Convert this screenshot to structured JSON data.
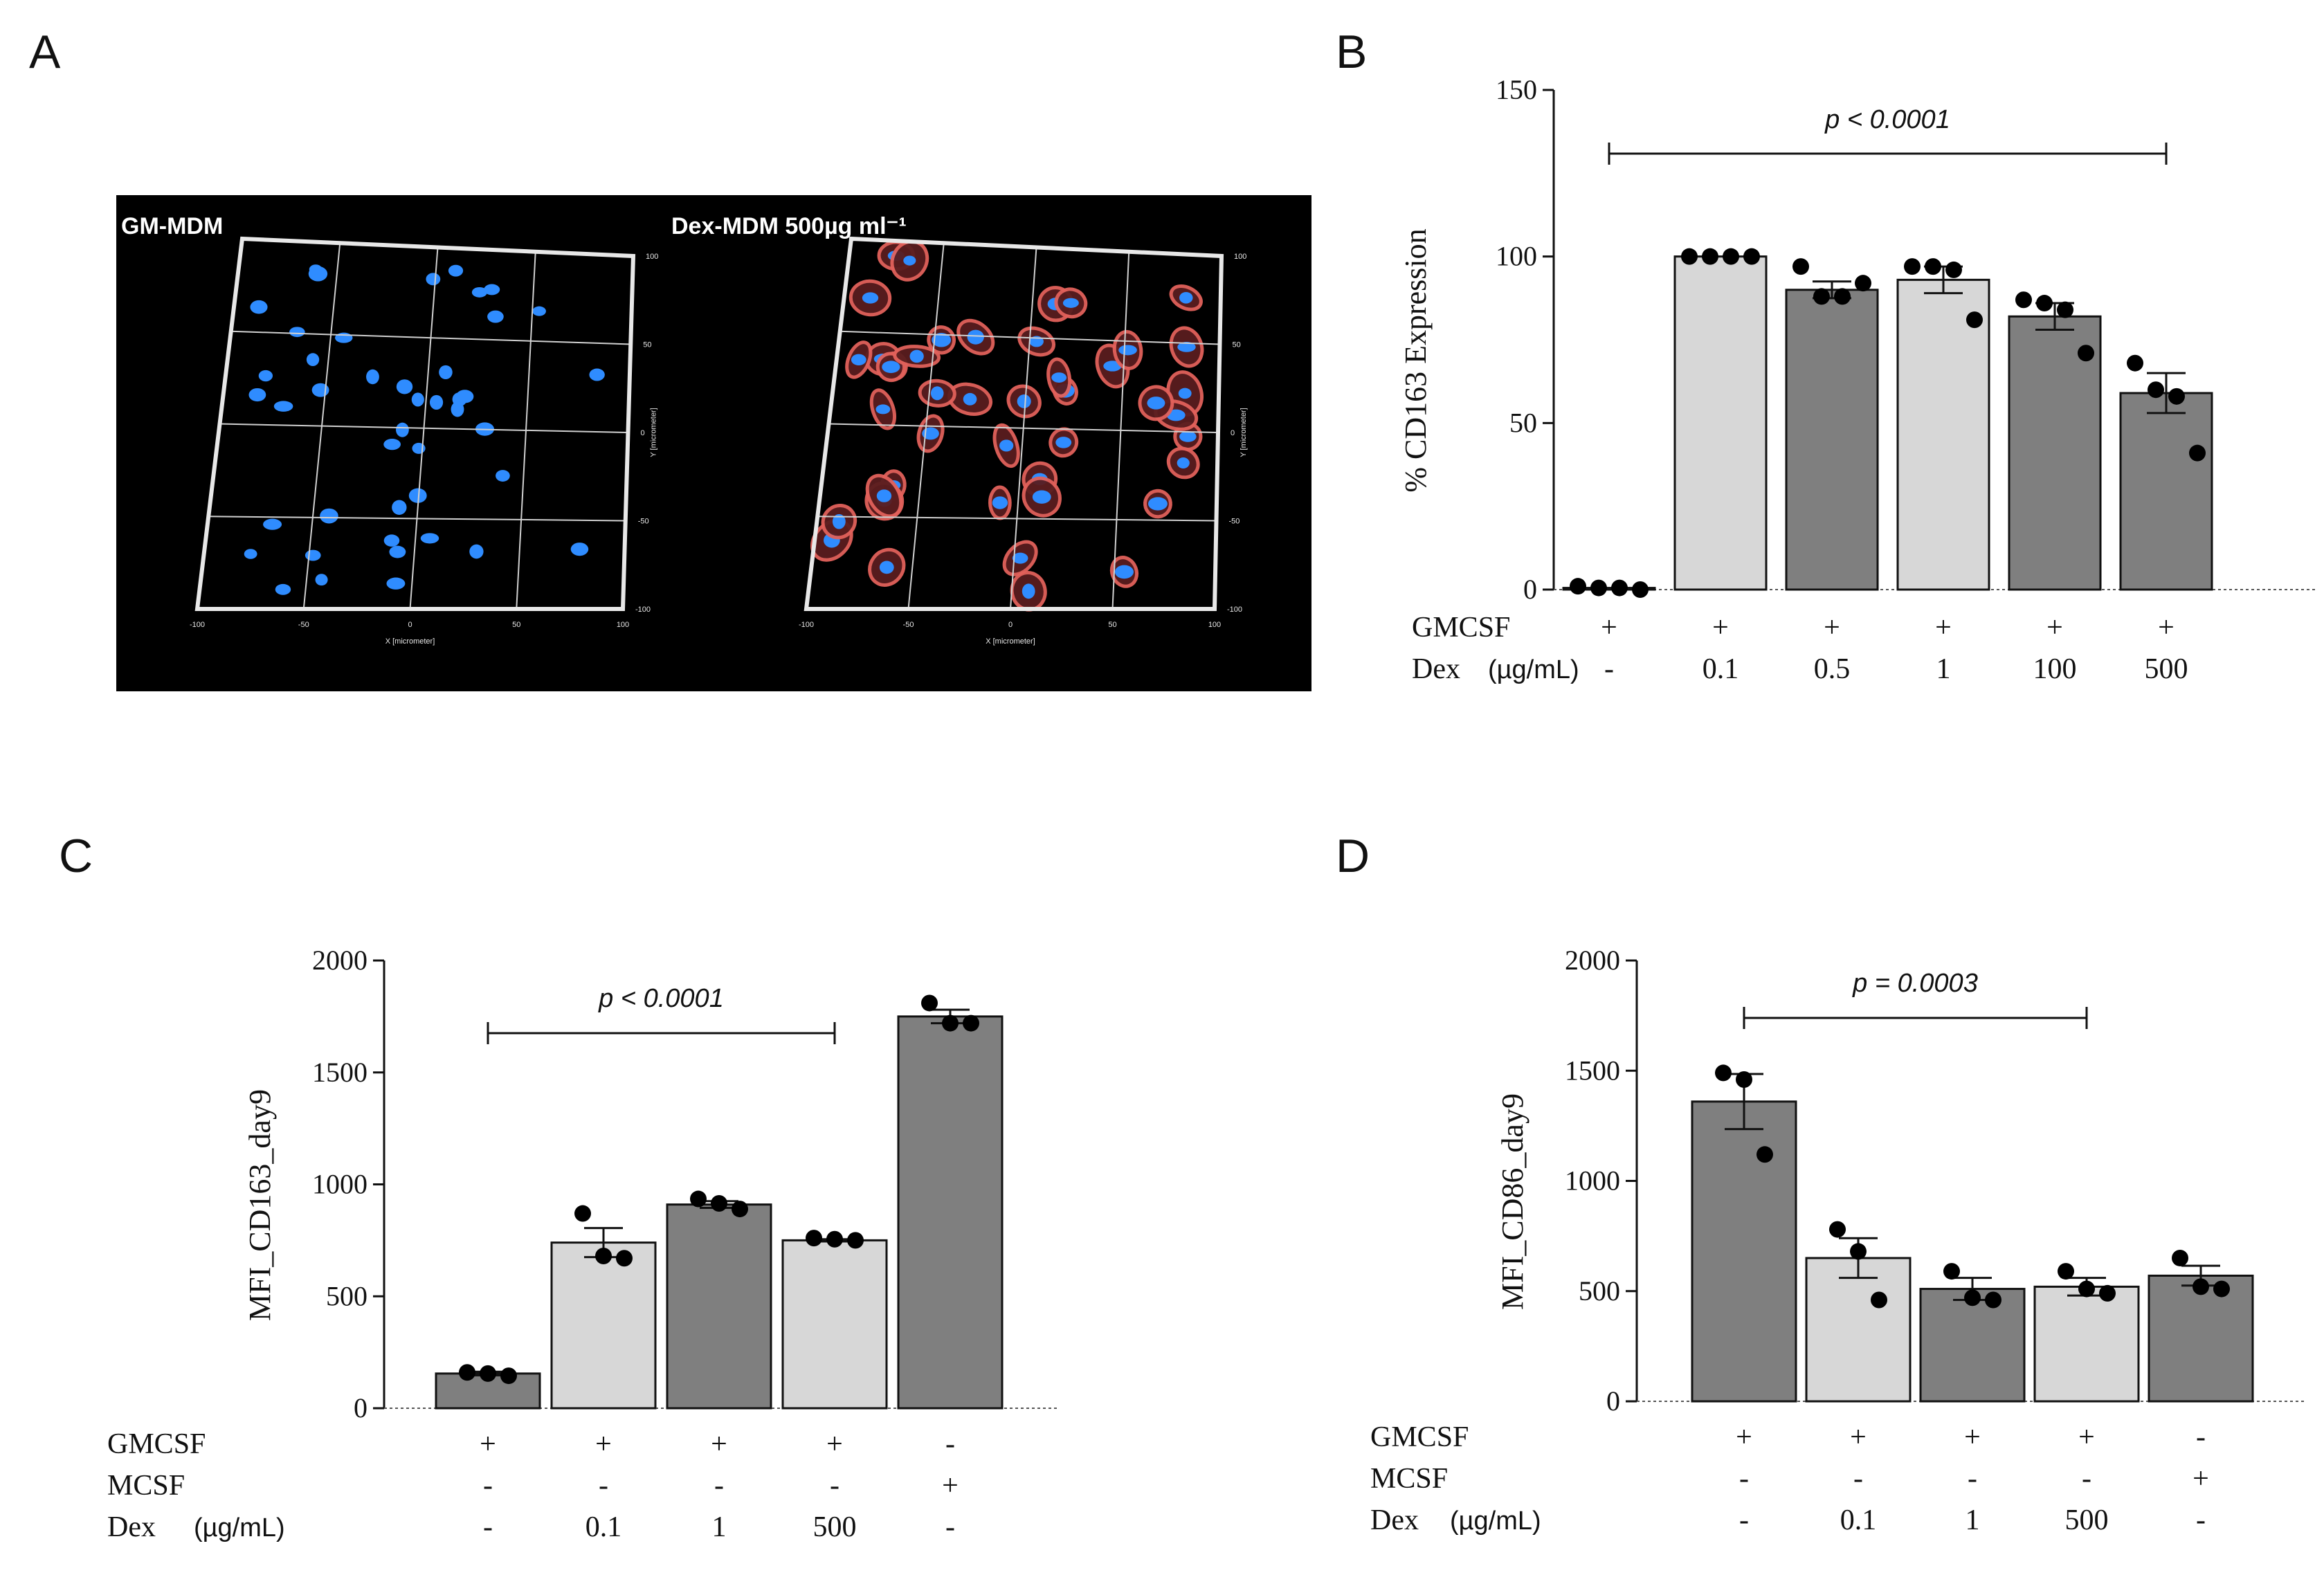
{
  "panels": {
    "a": "A",
    "b": "B",
    "c": "C",
    "d": "D"
  },
  "microscopy": {
    "left_title": "GM-MDM",
    "right_title": "Dex-MDM 500µg ml⁻¹",
    "x_ticks": [
      "-100",
      "-50",
      "0",
      "50",
      "100"
    ],
    "y_ticks": [
      "100",
      "50",
      "0",
      "-50",
      "-100"
    ],
    "x_axis_label": "X [micrometer]",
    "y_axis_label": "Y [micrometer]",
    "colors": {
      "background": "#000000",
      "nucleus": "#2f8cff",
      "membrane": "#e2615b"
    }
  },
  "colors": {
    "dark_bar": "#7f7f7f",
    "light_bar": "#d7d7d7",
    "dot": "#000000"
  },
  "chart_data": [
    {
      "id": "B",
      "type": "bar",
      "ylabel": "% CD163 Expression",
      "ylim": [
        0,
        150
      ],
      "yticks": [
        "0",
        "50",
        "100",
        "150"
      ],
      "annotation": {
        "text": "p < 0.0001",
        "from_bar": 0,
        "to_bar": 5
      },
      "condition_rows": [
        {
          "label": "GMCSF",
          "values": [
            "+",
            "+",
            "+",
            "+",
            "+",
            "+"
          ]
        },
        {
          "label": "Dex",
          "unit": "(µg/mL)",
          "values": [
            "-",
            "0.1",
            "0.5",
            "1",
            "100",
            "500"
          ]
        }
      ],
      "bars": [
        {
          "mean": 0.5,
          "sem": 0,
          "shade": "dark",
          "points": [
            1,
            0.5,
            0.5,
            0
          ]
        },
        {
          "mean": 100,
          "sem": 0,
          "shade": "light",
          "points": [
            100,
            100,
            100,
            100
          ]
        },
        {
          "mean": 90,
          "sem": 2.5,
          "shade": "dark",
          "points": [
            97,
            88,
            88,
            92
          ]
        },
        {
          "mean": 93,
          "sem": 4,
          "shade": "light",
          "points": [
            97,
            97,
            96,
            81
          ]
        },
        {
          "mean": 82,
          "sem": 4,
          "shade": "dark",
          "points": [
            87,
            86,
            84,
            71
          ]
        },
        {
          "mean": 59,
          "sem": 6,
          "shade": "dark",
          "points": [
            68,
            60,
            58,
            41
          ]
        }
      ]
    },
    {
      "id": "C",
      "type": "bar",
      "ylabel": "MFI_CD163_day9",
      "ylim": [
        0,
        2000
      ],
      "yticks": [
        "0",
        "500",
        "1000",
        "1500",
        "2000"
      ],
      "annotation": {
        "text": "p < 0.0001",
        "from_bar": 0,
        "to_bar": 3
      },
      "condition_rows": [
        {
          "label": "GMCSF",
          "values": [
            "+",
            "+",
            "+",
            "+",
            "-"
          ]
        },
        {
          "label": "MCSF",
          "values": [
            "-",
            "-",
            "-",
            "-",
            "+"
          ]
        },
        {
          "label": "Dex",
          "unit": "(µg/mL)",
          "values": [
            "-",
            "0.1",
            "1",
            "500",
            "-"
          ]
        }
      ],
      "bars": [
        {
          "mean": 155,
          "sem": 8,
          "shade": "dark",
          "points": [
            160,
            155,
            145
          ]
        },
        {
          "mean": 740,
          "sem": 65,
          "shade": "light",
          "points": [
            870,
            680,
            670
          ]
        },
        {
          "mean": 910,
          "sem": 15,
          "shade": "dark",
          "points": [
            935,
            915,
            890
          ]
        },
        {
          "mean": 750,
          "sem": 5,
          "shade": "light",
          "points": [
            760,
            755,
            750
          ]
        },
        {
          "mean": 1750,
          "sem": 30,
          "shade": "dark",
          "points": [
            1810,
            1720,
            1720
          ]
        }
      ]
    },
    {
      "id": "D",
      "type": "bar",
      "ylabel": "MFI_CD86_day9",
      "ylim": [
        0,
        2000
      ],
      "yticks": [
        "0",
        "500",
        "1000",
        "1500",
        "2000"
      ],
      "annotation": {
        "text": "p = 0.0003",
        "from_bar": 0,
        "to_bar": 3
      },
      "condition_rows": [
        {
          "label": "GMCSF",
          "values": [
            "+",
            "+",
            "+",
            "+",
            "-"
          ]
        },
        {
          "label": "MCSF",
          "values": [
            "-",
            "-",
            "-",
            "-",
            "+"
          ]
        },
        {
          "label": "Dex",
          "unit": "(µg/mL)",
          "values": [
            "-",
            "0.1",
            "1",
            "500",
            "-"
          ]
        }
      ],
      "bars": [
        {
          "mean": 1360,
          "sem": 125,
          "shade": "dark",
          "points": [
            1490,
            1460,
            1120
          ]
        },
        {
          "mean": 650,
          "sem": 90,
          "shade": "light",
          "points": [
            780,
            680,
            460
          ]
        },
        {
          "mean": 510,
          "sem": 50,
          "shade": "dark",
          "points": [
            590,
            470,
            460
          ]
        },
        {
          "mean": 520,
          "sem": 40,
          "shade": "light",
          "points": [
            590,
            510,
            490
          ]
        },
        {
          "mean": 570,
          "sem": 45,
          "shade": "dark",
          "points": [
            650,
            520,
            510
          ]
        }
      ]
    }
  ]
}
